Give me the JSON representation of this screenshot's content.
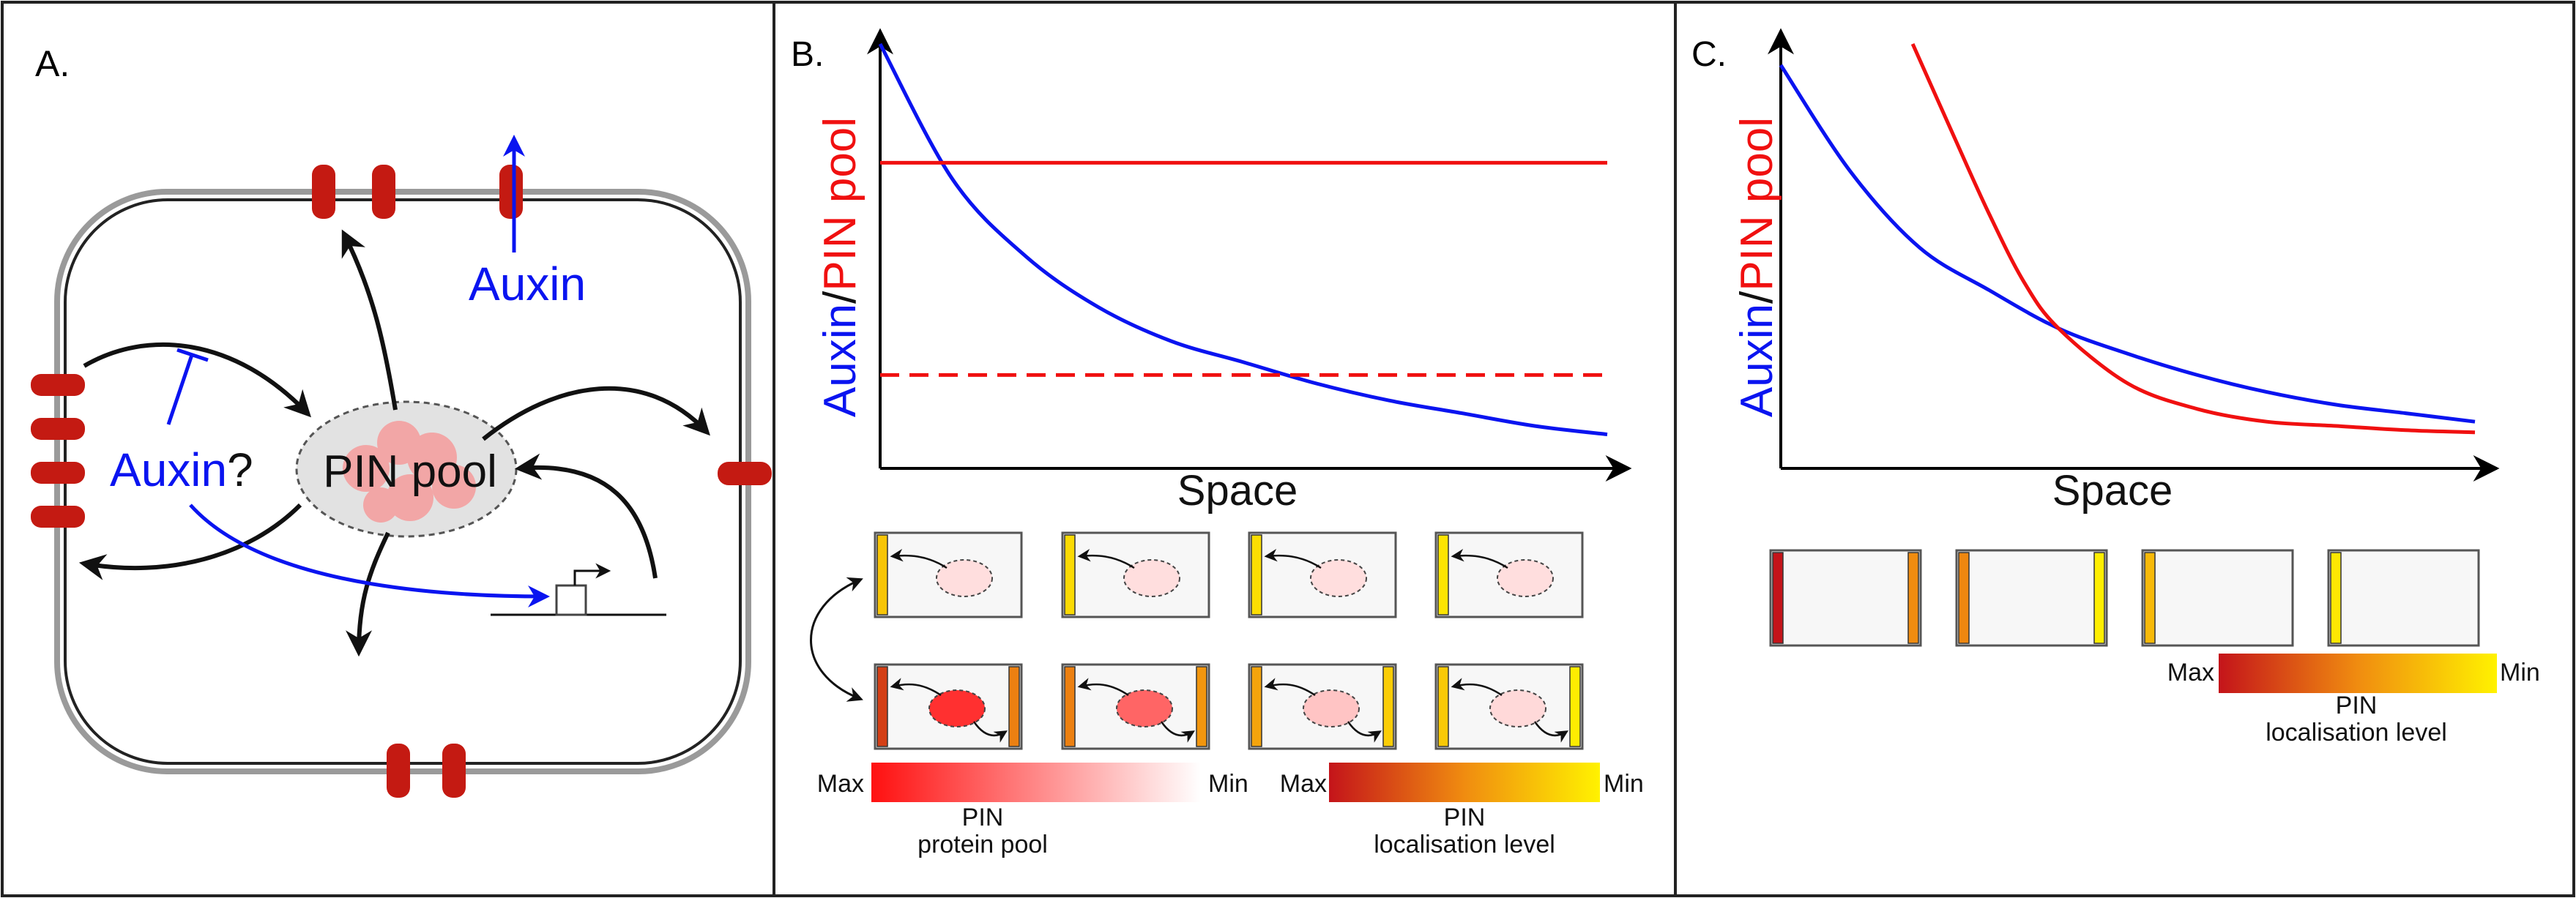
{
  "colors": {
    "auxin": "#0a14f0",
    "pin": "#f01010",
    "pin_dark": "#c41a12",
    "arrow": "#111111",
    "membrane": "#9a9a9a",
    "pool_fill": "#e2e2e2"
  },
  "panel_a": {
    "label": "A.",
    "auxin_top": "Auxin",
    "auxin_left": "Auxin",
    "question_mark": "?",
    "pool_label": "PIN pool"
  },
  "panel_b": {
    "label": "B.",
    "ylabel_auxin": "Auxin",
    "ylabel_slash": "/",
    "ylabel_pin": "PIN pool",
    "xlabel": "Space",
    "chart_data": {
      "type": "line",
      "series": [
        {
          "name": "Auxin",
          "style": "solid",
          "x": [
            0,
            0.1,
            0.2,
            0.3,
            0.4,
            0.5,
            0.6,
            0.7,
            0.8,
            0.9,
            1.0
          ],
          "values": [
            1.0,
            0.68,
            0.5,
            0.38,
            0.3,
            0.25,
            0.2,
            0.16,
            0.13,
            0.1,
            0.08
          ]
        },
        {
          "name": "PIN pool (high)",
          "style": "solid",
          "x": [
            0,
            1
          ],
          "values": [
            0.72,
            0.72
          ]
        },
        {
          "name": "PIN pool (low)",
          "style": "dashed",
          "x": [
            0,
            1
          ],
          "values": [
            0.22,
            0.22
          ]
        }
      ],
      "xlabel": "Space",
      "ylabel": "Auxin/PIN pool",
      "xlim": [
        0,
        1
      ],
      "ylim": [
        0,
        1
      ]
    },
    "top_row_levels": [
      0.78,
      0.88,
      0.9,
      0.93
    ],
    "bottom_row": {
      "left_levels": [
        0.18,
        0.45,
        0.62,
        0.8
      ],
      "right_levels": [
        0.45,
        0.55,
        0.82,
        0.97
      ],
      "pool_levels": [
        0.85,
        0.6,
        0.15,
        0.05
      ]
    },
    "legend_pool": {
      "max": "Max",
      "min": "Min",
      "title1": "PIN",
      "title2": "protein pool"
    },
    "legend_loc": {
      "max": "Max",
      "min": "Min",
      "title1": "PIN",
      "title2": "localisation level"
    }
  },
  "panel_c": {
    "label": "C.",
    "ylabel_auxin": "Auxin",
    "ylabel_slash": "/",
    "ylabel_pin": "PIN pool",
    "xlabel": "Space",
    "chart_data": {
      "type": "line",
      "series": [
        {
          "name": "Auxin",
          "style": "solid",
          "x": [
            0,
            0.1,
            0.2,
            0.3,
            0.4,
            0.5,
            0.6,
            0.7,
            0.8,
            0.9,
            1.0
          ],
          "values": [
            0.95,
            0.7,
            0.52,
            0.42,
            0.33,
            0.27,
            0.22,
            0.18,
            0.15,
            0.13,
            0.11
          ]
        },
        {
          "name": "PIN pool",
          "style": "solid",
          "x": [
            0.19,
            0.25,
            0.3,
            0.35,
            0.4,
            0.5,
            0.6,
            0.7,
            0.8,
            0.9,
            1.0
          ],
          "values": [
            1.0,
            0.78,
            0.6,
            0.44,
            0.33,
            0.2,
            0.14,
            0.11,
            0.1,
            0.09,
            0.085
          ]
        }
      ],
      "xlabel": "Space",
      "ylabel": "Auxin/PIN pool",
      "xlim": [
        0,
        1
      ],
      "ylim": [
        0,
        1
      ]
    },
    "cell_row": {
      "left_levels": [
        0.0,
        0.48,
        0.72,
        0.95
      ],
      "right_levels": [
        0.5,
        0.98,
        null,
        null
      ]
    },
    "legend_loc": {
      "max": "Max",
      "min": "Min",
      "title1": "PIN",
      "title2": "localisation level"
    }
  }
}
